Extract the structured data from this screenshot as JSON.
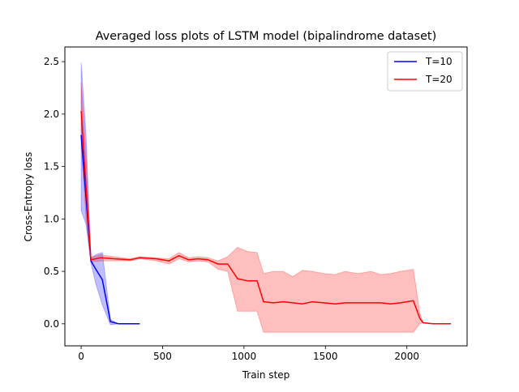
{
  "chart_data": {
    "type": "line",
    "title": "Averaged loss plots of LSTM model (bipalindrome dataset)",
    "xlabel": "Train step",
    "ylabel": "Cross-Entropy loss",
    "xlim": [
      -100,
      2370
    ],
    "ylim": [
      -0.21,
      2.64
    ],
    "xticks": [
      0,
      500,
      1000,
      1500,
      2000
    ],
    "yticks": [
      0.0,
      0.5,
      1.0,
      1.5,
      2.0,
      2.5
    ],
    "xtick_labels": [
      "0",
      "500",
      "1000",
      "1500",
      "2000"
    ],
    "ytick_labels": [
      "0.0",
      "0.5",
      "1.0",
      "1.5",
      "2.0",
      "2.5"
    ],
    "grid": false,
    "legend_position": "top-right",
    "series": [
      {
        "name": "T=10",
        "color": "#0000ff",
        "band_color": "#0000ff",
        "x": [
          0,
          30,
          60,
          90,
          130,
          180,
          230,
          300,
          360
        ],
        "y": [
          1.8,
          1.2,
          0.6,
          0.52,
          0.42,
          0.02,
          0.0,
          0.0,
          0.0
        ],
        "upper": [
          2.49,
          1.8,
          0.63,
          0.66,
          0.68,
          0.04,
          0.0,
          0.0,
          0.0
        ],
        "lower": [
          1.08,
          0.95,
          0.58,
          0.38,
          0.18,
          -0.01,
          0.0,
          0.0,
          0.0
        ]
      },
      {
        "name": "T=20",
        "color": "#ff0000",
        "band_color": "#ff0000",
        "x": [
          0,
          30,
          60,
          120,
          200,
          300,
          360,
          460,
          540,
          600,
          660,
          720,
          780,
          840,
          900,
          960,
          1020,
          1080,
          1120,
          1180,
          1240,
          1300,
          1360,
          1420,
          1490,
          1560,
          1620,
          1700,
          1780,
          1840,
          1900,
          1960,
          2040,
          2080,
          2100,
          2160,
          2220,
          2270
        ],
        "y": [
          2.03,
          1.3,
          0.61,
          0.63,
          0.62,
          0.61,
          0.63,
          0.62,
          0.6,
          0.65,
          0.61,
          0.62,
          0.61,
          0.57,
          0.57,
          0.43,
          0.41,
          0.41,
          0.21,
          0.2,
          0.21,
          0.2,
          0.19,
          0.21,
          0.2,
          0.19,
          0.2,
          0.2,
          0.2,
          0.2,
          0.19,
          0.2,
          0.22,
          0.05,
          0.01,
          0.0,
          0.0,
          0.0
        ],
        "upper": [
          2.3,
          1.6,
          0.63,
          0.66,
          0.64,
          0.62,
          0.64,
          0.63,
          0.62,
          0.68,
          0.63,
          0.64,
          0.63,
          0.6,
          0.64,
          0.73,
          0.69,
          0.68,
          0.48,
          0.5,
          0.5,
          0.45,
          0.51,
          0.5,
          0.48,
          0.47,
          0.5,
          0.48,
          0.5,
          0.47,
          0.48,
          0.5,
          0.52,
          0.1,
          0.01,
          0.0,
          0.0,
          0.0
        ],
        "lower": [
          1.75,
          1.0,
          0.59,
          0.6,
          0.6,
          0.6,
          0.62,
          0.6,
          0.57,
          0.62,
          0.59,
          0.6,
          0.59,
          0.52,
          0.5,
          0.12,
          0.12,
          0.12,
          -0.08,
          -0.08,
          -0.08,
          -0.08,
          -0.08,
          -0.08,
          -0.08,
          -0.08,
          -0.08,
          -0.08,
          -0.08,
          -0.08,
          -0.08,
          -0.08,
          -0.08,
          0.0,
          0.01,
          0.0,
          0.0,
          0.0
        ]
      }
    ]
  }
}
